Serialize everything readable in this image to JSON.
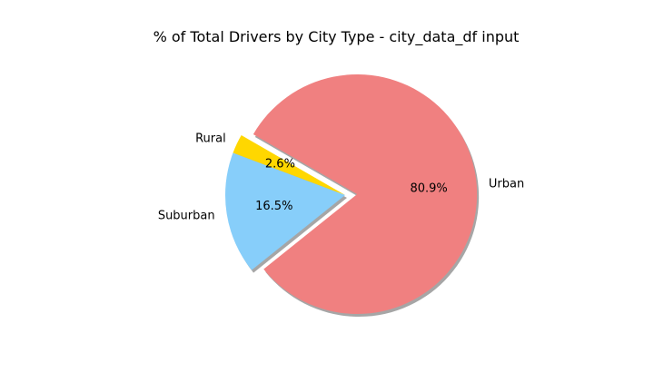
{
  "chart_data": {
    "type": "pie",
    "title": "% of Total Drivers by City Type - city_data_df input",
    "categories": [
      "Rural",
      "Suburban",
      "Urban"
    ],
    "values": [
      2.6,
      16.5,
      80.9
    ],
    "value_labels": [
      "2.6%",
      "16.5%",
      "80.9%"
    ],
    "colors": [
      "#ffd700",
      "#87cefa",
      "#f08080"
    ],
    "exploded": [
      "Urban"
    ],
    "shadow": true,
    "start_angle_deg": 150
  }
}
